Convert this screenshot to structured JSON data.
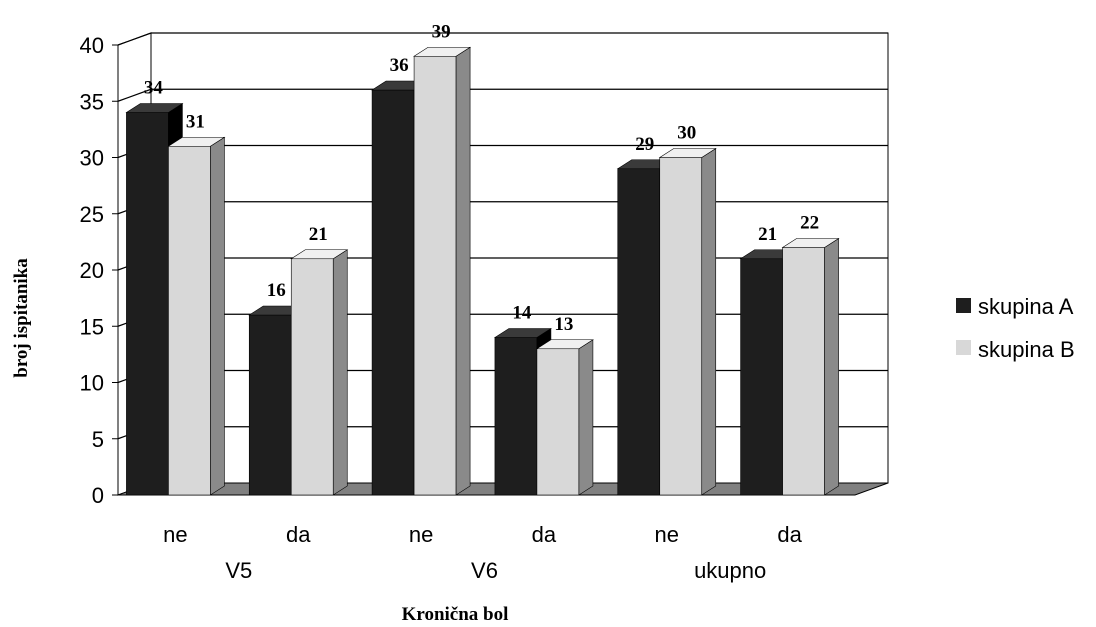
{
  "chart_data": {
    "type": "bar",
    "style": "3d-clustered-column",
    "categories": [
      "ne",
      "da",
      "ne",
      "da",
      "ne",
      "da"
    ],
    "groups": [
      {
        "label": "V5",
        "span": [
          0,
          1
        ]
      },
      {
        "label": "V6",
        "span": [
          2,
          3
        ]
      },
      {
        "label": "ukupno",
        "span": [
          4,
          5
        ]
      }
    ],
    "series": [
      {
        "name": "skupina A",
        "color": "#1e1e1e",
        "values": [
          34,
          16,
          36,
          14,
          29,
          21
        ]
      },
      {
        "name": "skupina B",
        "color": "#d8d8d8",
        "values": [
          31,
          21,
          39,
          13,
          30,
          22
        ]
      }
    ],
    "y_ticks": [
      0,
      5,
      10,
      15,
      20,
      25,
      30,
      35,
      40
    ],
    "ylim": [
      0,
      40
    ],
    "xlabel": "Kronična bol",
    "ylabel": "broj ispitanika",
    "grid": true,
    "legend_position": "right",
    "colors": {
      "floor": "#808080",
      "wall": "#ffffff",
      "grid": "#000000"
    }
  }
}
